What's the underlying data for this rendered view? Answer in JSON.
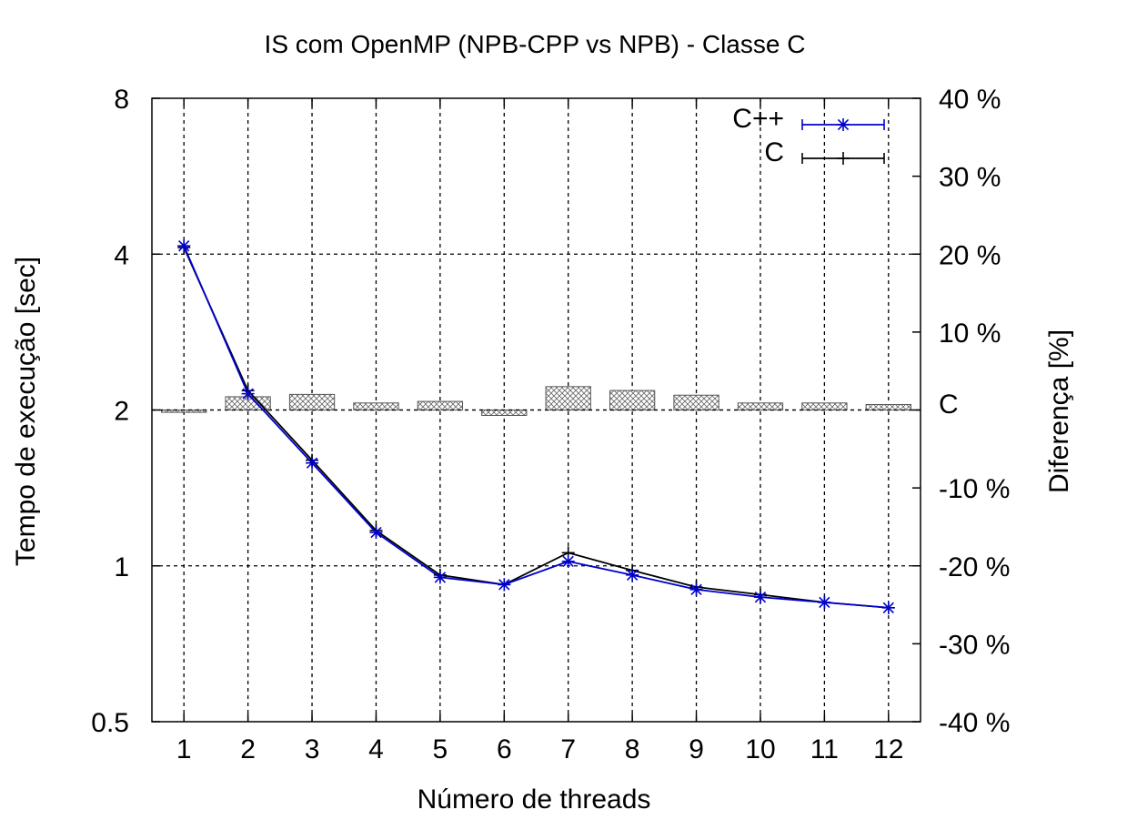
{
  "chart_data": {
    "type": "line",
    "title": "IS com OpenMP (NPB-CPP vs NPB) - Classe C",
    "xlabel": "Número de threads",
    "ylabel": "Tempo de execução [sec]",
    "y2label": "Diferença [%]",
    "y2_zero_label": "C",
    "x": [
      1,
      2,
      3,
      4,
      5,
      6,
      7,
      8,
      9,
      10,
      11,
      12
    ],
    "xlim": [
      0.5,
      12.5
    ],
    "ylim": [
      0.5,
      8
    ],
    "y_scale": "log2",
    "y_ticks": [
      0.5,
      1,
      2,
      4,
      8
    ],
    "y_tick_labels": [
      "0.5",
      "1",
      "2",
      "4",
      "8"
    ],
    "y2lim": [
      -40,
      40
    ],
    "y2_ticks": [
      -40,
      -30,
      -20,
      -10,
      10,
      20,
      30,
      40
    ],
    "y2_tick_labels": [
      "-40 %",
      "-30 %",
      "-20 %",
      "-10 %",
      "10 %",
      "20 %",
      "30 %",
      "40 %"
    ],
    "grid": true,
    "legend_position": "top-right",
    "series": [
      {
        "name": "C++",
        "color": "#0000cc",
        "marker": "star",
        "values": [
          4.15,
          2.15,
          1.58,
          1.16,
          0.95,
          0.92,
          1.02,
          0.96,
          0.9,
          0.87,
          0.85,
          0.83
        ]
      },
      {
        "name": "C",
        "color": "#000000",
        "marker": "plus",
        "values": [
          4.12,
          2.18,
          1.6,
          1.17,
          0.96,
          0.92,
          1.06,
          0.98,
          0.91,
          0.88,
          0.85,
          0.83
        ]
      }
    ],
    "difference_bars": {
      "pattern": "crosshatch",
      "values": [
        -0.3,
        1.7,
        2.0,
        0.9,
        1.1,
        -0.7,
        3.0,
        2.5,
        1.9,
        0.9,
        0.9,
        0.7
      ]
    }
  }
}
